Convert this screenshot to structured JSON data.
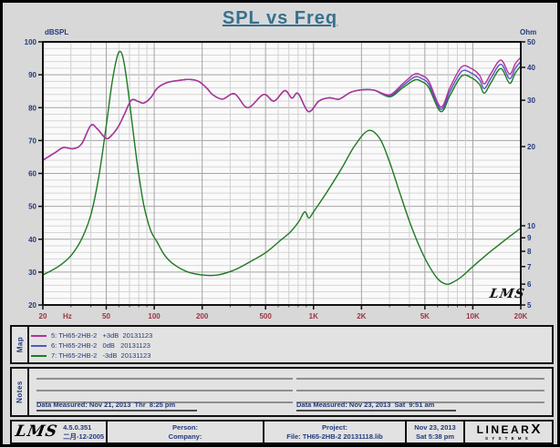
{
  "title": "SPL vs Freq",
  "chart": {
    "left_axis_unit": "dBSPL",
    "right_axis_unit": "Ohm",
    "watermark": "LMS"
  },
  "chart_data": {
    "type": "line",
    "title": "SPL vs Freq",
    "x_axis": {
      "scale": "log",
      "min": 20,
      "max": 20000,
      "unit": "Hz",
      "ticks": [
        {
          "f": 20,
          "label": "20"
        },
        {
          "f": 50,
          "label": "50"
        },
        {
          "f": 100,
          "label": "100"
        },
        {
          "f": 200,
          "label": "200"
        },
        {
          "f": 500,
          "label": "500"
        },
        {
          "f": 1000,
          "label": "1K"
        },
        {
          "f": 2000,
          "label": "2K"
        },
        {
          "f": 5000,
          "label": "5K"
        },
        {
          "f": 10000,
          "label": "10K"
        },
        {
          "f": 20000,
          "label": "20K"
        }
      ]
    },
    "y_left": {
      "label": "dBSPL",
      "min": 20,
      "max": 100,
      "ticks": [
        100,
        90,
        80,
        70,
        60,
        50,
        40,
        30,
        20
      ],
      "minor_step": 2
    },
    "y_right": {
      "label": "Ohm",
      "scale": "log",
      "min": 5,
      "max": 50,
      "ticks": [
        50,
        40,
        30,
        20,
        10,
        9,
        8,
        7,
        6,
        5
      ]
    },
    "grid": true,
    "legend_position": "map-panel-below",
    "x": [
      20,
      24,
      27,
      31,
      35,
      40,
      44,
      50,
      55,
      60,
      65,
      72,
      80,
      86,
      95,
      105,
      120,
      140,
      165,
      190,
      215,
      232,
      268,
      320,
      386,
      485,
      565,
      660,
      732,
      800,
      930,
      1080,
      1250,
      1450,
      1700,
      2000,
      2400,
      3000,
      3600,
      4300,
      4800,
      5300,
      6300,
      7200,
      8500,
      9800,
      11000,
      11800,
      13000,
      15000,
      17000,
      18500,
      20000
    ],
    "series": [
      {
        "name": "5: TH65-2HB-2   +3dB  20131123",
        "color": "#b5309c",
        "axis": "left",
        "values": [
          64,
          66.4,
          67.9,
          67.5,
          69,
          74.6,
          73.5,
          70.6,
          72,
          74.5,
          78,
          82.3,
          81.8,
          81.4,
          83,
          86,
          87.6,
          88.2,
          88.6,
          88,
          85.8,
          84,
          82.6,
          84.2,
          80,
          84,
          82,
          85.2,
          82.9,
          84.3,
          78.8,
          82,
          83,
          82.6,
          84.6,
          85.4,
          85.3,
          83.9,
          87.1,
          90.2,
          89.7,
          88,
          80.2,
          86.2,
          92.4,
          91.9,
          89.9,
          87.2,
          90.4,
          94.5,
          90.2,
          93.4,
          95.3
        ]
      },
      {
        "name": "6: TH65-2HB-2   0dB   20131123",
        "color": "#5656c0",
        "axis": "left",
        "values": [
          64,
          66.4,
          67.9,
          67.5,
          69,
          74.6,
          73.5,
          70.6,
          72,
          74.5,
          78,
          82.3,
          81.8,
          81.4,
          83,
          86,
          87.6,
          88.2,
          88.6,
          88,
          85.8,
          84,
          82.6,
          84.2,
          80,
          84,
          82,
          85.2,
          82.9,
          84.3,
          78.8,
          82,
          83,
          82.6,
          84.6,
          85.4,
          85.3,
          83.6,
          86.5,
          89.3,
          88.8,
          87,
          79.5,
          85,
          91,
          90.5,
          88.5,
          85.8,
          89,
          93.2,
          88.8,
          92,
          94
        ]
      },
      {
        "name": "7: TH65-2HB-2   -3dB  20131123",
        "color": "#1e7a22",
        "axis": "left",
        "values": [
          64,
          66.4,
          67.9,
          67.5,
          69,
          74.6,
          73.5,
          70.6,
          72,
          74.5,
          78,
          82.3,
          81.8,
          81.4,
          83,
          86,
          87.6,
          88.2,
          88.6,
          88,
          85.8,
          84,
          82.6,
          84.2,
          80,
          84,
          82,
          85.2,
          82.9,
          84.3,
          78.8,
          82,
          83,
          82.6,
          84.6,
          85.4,
          85.3,
          83.3,
          85.9,
          88.4,
          87.9,
          86,
          78.8,
          83.8,
          89.6,
          89.1,
          87.1,
          84.4,
          87.6,
          91.9,
          87.4,
          90.6,
          92.7
        ]
      },
      {
        "name": "impedance (Ohm)",
        "color": "#1e7a22",
        "axis": "right",
        "points": [
          [
            20,
            6.5
          ],
          [
            25,
            7.0
          ],
          [
            30,
            7.7
          ],
          [
            35,
            8.9
          ],
          [
            40,
            11
          ],
          [
            45,
            15.5
          ],
          [
            50,
            24
          ],
          [
            54,
            34
          ],
          [
            58,
            43
          ],
          [
            61,
            46
          ],
          [
            64,
            43
          ],
          [
            68,
            34
          ],
          [
            73,
            24
          ],
          [
            79,
            16.5
          ],
          [
            86,
            12
          ],
          [
            95,
            9.6
          ],
          [
            104,
            8.7
          ],
          [
            115,
            7.8
          ],
          [
            130,
            7.2
          ],
          [
            160,
            6.7
          ],
          [
            200,
            6.5
          ],
          [
            250,
            6.5
          ],
          [
            320,
            6.8
          ],
          [
            400,
            7.3
          ],
          [
            500,
            7.9
          ],
          [
            620,
            8.8
          ],
          [
            720,
            9.5
          ],
          [
            810,
            10.4
          ],
          [
            880,
            11.3
          ],
          [
            935,
            10.7
          ],
          [
            1000,
            11.3
          ],
          [
            1200,
            13.3
          ],
          [
            1500,
            16.5
          ],
          [
            1800,
            20
          ],
          [
            2200,
            23
          ],
          [
            2600,
            21.5
          ],
          [
            3000,
            17.5
          ],
          [
            3500,
            13.2
          ],
          [
            4000,
            10.4
          ],
          [
            4600,
            8.4
          ],
          [
            5200,
            7.2
          ],
          [
            6000,
            6.3
          ],
          [
            6800,
            6.0
          ],
          [
            7500,
            6.1
          ],
          [
            8500,
            6.4
          ],
          [
            10000,
            7.0
          ],
          [
            12000,
            7.7
          ],
          [
            14000,
            8.3
          ],
          [
            17000,
            9.1
          ],
          [
            20000,
            9.8
          ]
        ]
      }
    ]
  },
  "map": {
    "label": "Map",
    "entries": [
      {
        "color": "#b5309c",
        "text": "5: TH65-2HB-2   +3dB  20131123"
      },
      {
        "color": "#5656c0",
        "text": "6: TH65-2HB-2   0dB   20131123"
      },
      {
        "color": "#1e7a22",
        "text": "7: TH65-2HB-2   -3dB  20131123"
      }
    ]
  },
  "notes": {
    "label": "Notes",
    "left_measured": "Data Measured: Nov 21, 2013  Thr  8:25 pm",
    "right_measured": "Data Measured: Nov 23, 2013  Sat  9:51 am"
  },
  "footer": {
    "lms": "LMS",
    "version": "4.5.0.351",
    "version_date": "二月-12-2005",
    "person_label": "Person:",
    "company_label": "Company:",
    "project_label": "Project:",
    "file": "File: TH65-2HB-2 20131118.lib",
    "date": "Nov 23, 2013",
    "time": "Sat  5:38 pm",
    "brand_main": "LINEAR",
    "brand_x": "X",
    "brand_sub": "SYSTEMS"
  }
}
